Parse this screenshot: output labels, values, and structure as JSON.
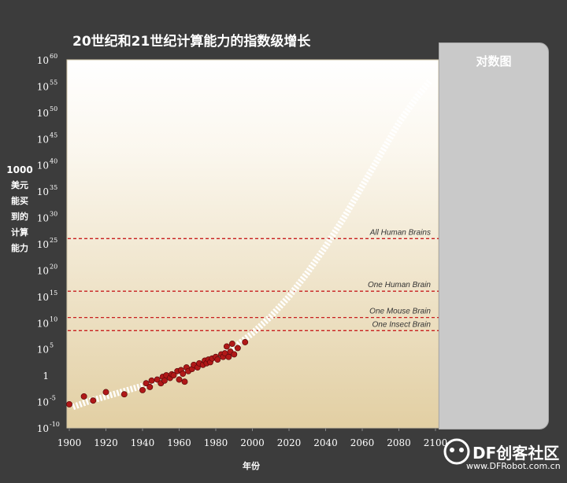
{
  "title": "20世纪和21世纪计算能力的指数级增长",
  "ylabel_lines": [
    "1000",
    "美元",
    "能买",
    "到的",
    "计算",
    "能力"
  ],
  "xlabel": "年份",
  "panel_title": "对数图",
  "watermark": {
    "brand": "DF创客社区",
    "url": "www.DFRobot.com.cn"
  },
  "colors": {
    "page_background": "#3c3c3c",
    "plot_gradient_top": "#ffffff",
    "plot_gradient_bottom": "#e2cfa3",
    "panel": "#c9c9c9",
    "marker": "#b01818",
    "trend": "#ffffff",
    "reference_line": "#c81e1e"
  },
  "chart_data": {
    "type": "scatter",
    "x_axis": {
      "min": 1900,
      "max": 2100,
      "ticks": [
        1900,
        1920,
        1940,
        1960,
        1980,
        2000,
        2020,
        2040,
        2060,
        2080,
        2100
      ],
      "tick_labels": [
        "1900",
        "1920",
        "1940",
        "1960",
        "1980",
        "2000",
        "2020",
        "2040",
        "2060",
        "2080",
        "2100"
      ]
    },
    "y_axis": {
      "scale": "log10",
      "min_exp": -10,
      "max_exp": 60,
      "ticks": [
        {
          "exp": 60,
          "base": "10",
          "sup": "60"
        },
        {
          "exp": 55,
          "base": "10",
          "sup": "55"
        },
        {
          "exp": 50,
          "base": "10",
          "sup": "50"
        },
        {
          "exp": 45,
          "base": "10",
          "sup": "45"
        },
        {
          "exp": 40,
          "base": "10",
          "sup": "40"
        },
        {
          "exp": 35,
          "base": "10",
          "sup": "35"
        },
        {
          "exp": 30,
          "base": "10",
          "sup": "30"
        },
        {
          "exp": 25,
          "base": "10",
          "sup": "25"
        },
        {
          "exp": 20,
          "base": "10",
          "sup": "20"
        },
        {
          "exp": 15,
          "base": "10",
          "sup": "15"
        },
        {
          "exp": 10,
          "base": "10",
          "sup": "10"
        },
        {
          "exp": 5,
          "base": "10",
          "sup": "5"
        },
        {
          "exp": 0,
          "base": "1",
          "sup": ""
        },
        {
          "exp": -5,
          "base": "10",
          "sup": "-5"
        },
        {
          "exp": -10,
          "base": "10",
          "sup": "-10"
        }
      ]
    },
    "points_log10": [
      [
        1900,
        -5.5
      ],
      [
        1908,
        -4
      ],
      [
        1913,
        -4.8
      ],
      [
        1920,
        -3.2
      ],
      [
        1930,
        -3.6
      ],
      [
        1940,
        -2.8
      ],
      [
        1942,
        -1.5
      ],
      [
        1944,
        -2.2
      ],
      [
        1945,
        -1
      ],
      [
        1948,
        -0.8
      ],
      [
        1950,
        -1.5
      ],
      [
        1951,
        -0.3
      ],
      [
        1952,
        -1
      ],
      [
        1953,
        0
      ],
      [
        1955,
        -0.5
      ],
      [
        1956,
        0.2
      ],
      [
        1957,
        0
      ],
      [
        1959,
        0.8
      ],
      [
        1960,
        -0.8
      ],
      [
        1961,
        1
      ],
      [
        1962,
        0.3
      ],
      [
        1963,
        -1.2
      ],
      [
        1964,
        1.5
      ],
      [
        1965,
        0.8
      ],
      [
        1967,
        1.2
      ],
      [
        1968,
        2
      ],
      [
        1970,
        1.5
      ],
      [
        1971,
        2.3
      ],
      [
        1973,
        2
      ],
      [
        1974,
        2.8
      ],
      [
        1975,
        2.3
      ],
      [
        1976,
        3
      ],
      [
        1977,
        2.5
      ],
      [
        1978,
        3.2
      ],
      [
        1980,
        3.5
      ],
      [
        1981,
        3
      ],
      [
        1983,
        4
      ],
      [
        1984,
        3.5
      ],
      [
        1985,
        4.2
      ],
      [
        1986,
        5.5
      ],
      [
        1987,
        3.5
      ],
      [
        1988,
        4.5
      ],
      [
        1989,
        6
      ],
      [
        1990,
        4
      ],
      [
        1992,
        5.2
      ],
      [
        1996,
        6.3
      ]
    ],
    "trend_log10": [
      [
        1902,
        -6.0
      ],
      [
        1910,
        -5.0
      ],
      [
        1920,
        -4.0
      ],
      [
        1930,
        -3.0
      ],
      [
        1940,
        -2.0
      ],
      [
        1950,
        -0.5
      ],
      [
        1960,
        0.5
      ],
      [
        1970,
        1.6
      ],
      [
        1980,
        3.2
      ],
      [
        1990,
        5.3
      ],
      [
        2000,
        8.0
      ],
      [
        2010,
        11.2
      ],
      [
        2020,
        15.0
      ],
      [
        2030,
        19.5
      ],
      [
        2040,
        24.5
      ],
      [
        2050,
        30.0
      ],
      [
        2060,
        36.0
      ],
      [
        2070,
        42.0
      ],
      [
        2080,
        48.0
      ],
      [
        2090,
        53.0
      ],
      [
        2097,
        56.0
      ]
    ],
    "reference_lines": [
      {
        "label": "All Human Brains",
        "exp": 26
      },
      {
        "label": "One Human Brain",
        "exp": 16
      },
      {
        "label": "One Mouse Brain",
        "exp": 11
      },
      {
        "label": "One Insect Brain",
        "exp": 8.5
      }
    ],
    "grid": false
  }
}
